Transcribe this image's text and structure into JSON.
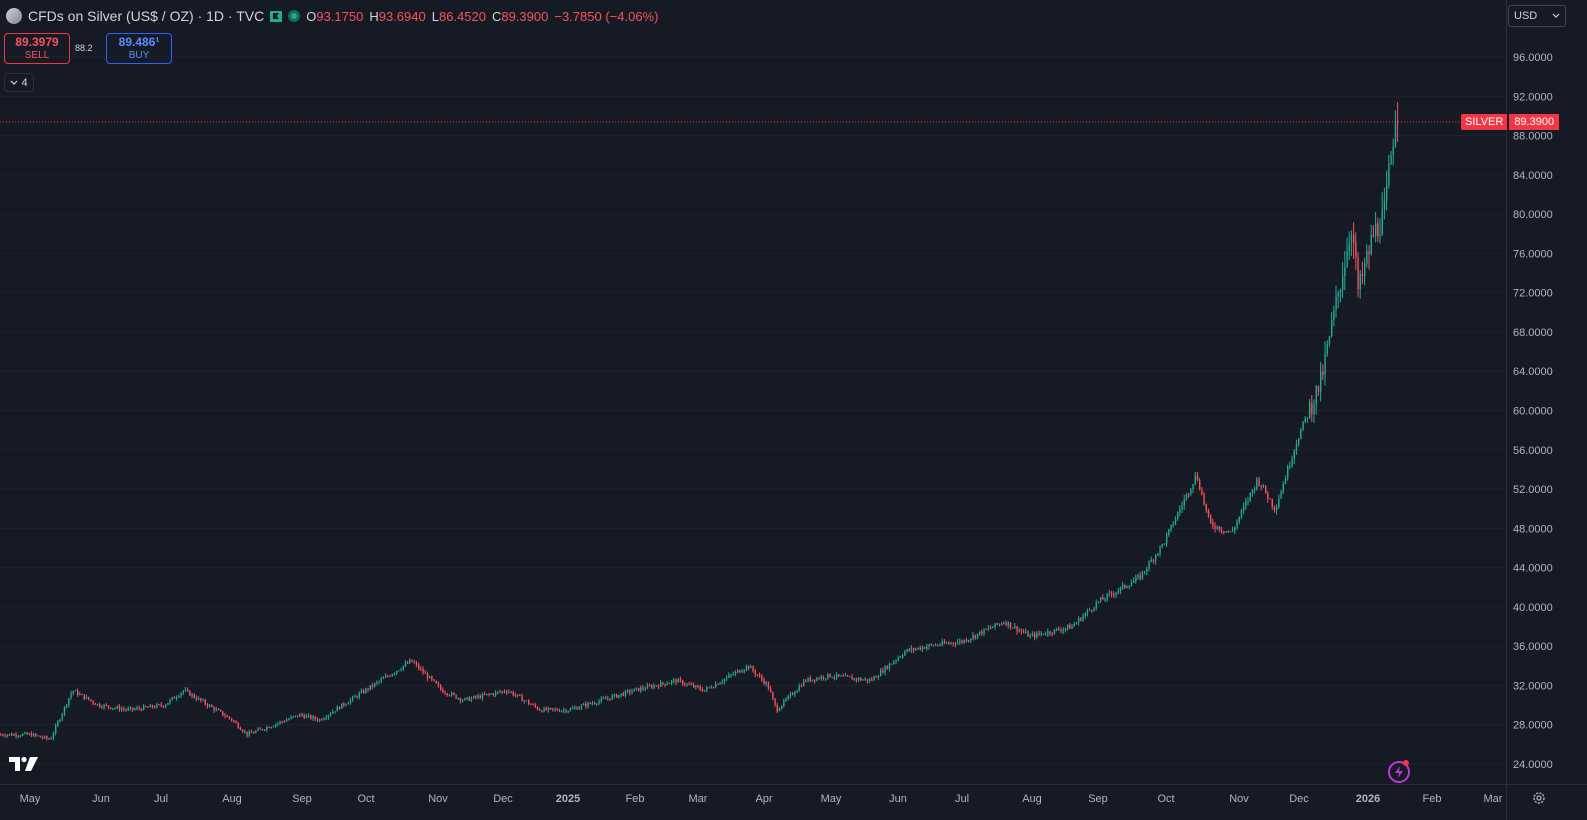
{
  "header": {
    "title": "CFDs on Silver (US$ / OZ) · 1D · TVC",
    "ohlc": {
      "o_label": "O",
      "o": "93.1750",
      "h_label": "H",
      "h": "93.6940",
      "l_label": "L",
      "l": "86.4520",
      "c_label": "C",
      "c": "89.3900",
      "change": "−3.7850 (−4.06%)"
    },
    "icons": [
      "symbol-icon",
      "flag-icon",
      "market-status-icon"
    ]
  },
  "trade": {
    "sell_price": "89.3979",
    "sell_label": "SELL",
    "spread": "88.2",
    "buy_price": "89.486¹",
    "buy_label": "BUY"
  },
  "indicators_toggle": {
    "count": "4"
  },
  "currency": {
    "selected": "USD"
  },
  "last_price_tag": {
    "symbol": "SILVER",
    "price": "89.3900"
  },
  "colors": {
    "up": "#22ab94",
    "down": "#f7525f",
    "background": "#161a25",
    "grid": "#1e222d",
    "axis_text": "#b2b5be"
  },
  "chart_data": {
    "type": "candlestick",
    "ylim": [
      22,
      98
    ],
    "y_ticks": [
      "24.0000",
      "28.0000",
      "32.0000",
      "36.0000",
      "40.0000",
      "44.0000",
      "48.0000",
      "52.0000",
      "56.0000",
      "60.0000",
      "64.0000",
      "68.0000",
      "72.0000",
      "76.0000",
      "80.0000",
      "84.0000",
      "88.0000",
      "92.0000",
      "96.0000"
    ],
    "x_ticks": [
      "May",
      "Jun",
      "Jul",
      "Aug",
      "Sep",
      "Oct",
      "Nov",
      "Dec",
      "2025",
      "Feb",
      "Mar",
      "Apr",
      "May",
      "Jun",
      "Jul",
      "Aug",
      "Sep",
      "Oct",
      "Nov",
      "Dec",
      "2026",
      "Feb",
      "Mar"
    ],
    "bold_x_ticks": [
      "2025",
      "2026"
    ],
    "last_price": 89.39,
    "series_anchors": [
      {
        "date": "2024-05-01",
        "close": 27.0
      },
      {
        "date": "2024-05-10",
        "close": 26.5
      },
      {
        "date": "2024-05-20",
        "close": 31.5
      },
      {
        "date": "2024-06-01",
        "close": 30.0
      },
      {
        "date": "2024-06-15",
        "close": 29.5
      },
      {
        "date": "2024-07-01",
        "close": 30.0
      },
      {
        "date": "2024-07-10",
        "close": 31.5
      },
      {
        "date": "2024-08-01",
        "close": 28.5
      },
      {
        "date": "2024-08-08",
        "close": 27.0
      },
      {
        "date": "2024-09-01",
        "close": 29.0
      },
      {
        "date": "2024-09-10",
        "close": 28.5
      },
      {
        "date": "2024-10-01",
        "close": 31.5
      },
      {
        "date": "2024-10-22",
        "close": 34.5
      },
      {
        "date": "2024-11-05",
        "close": 31.5
      },
      {
        "date": "2024-11-15",
        "close": 30.5
      },
      {
        "date": "2024-12-05",
        "close": 31.5
      },
      {
        "date": "2024-12-20",
        "close": 29.5
      },
      {
        "date": "2025-01-02",
        "close": 29.5
      },
      {
        "date": "2025-02-01",
        "close": 31.5
      },
      {
        "date": "2025-02-20",
        "close": 32.5
      },
      {
        "date": "2025-03-05",
        "close": 31.5
      },
      {
        "date": "2025-03-25",
        "close": 34.0
      },
      {
        "date": "2025-04-03",
        "close": 32.0
      },
      {
        "date": "2025-04-07",
        "close": 29.5
      },
      {
        "date": "2025-04-20",
        "close": 32.5
      },
      {
        "date": "2025-05-01",
        "close": 33.0
      },
      {
        "date": "2025-05-20",
        "close": 32.5
      },
      {
        "date": "2025-06-05",
        "close": 35.5
      },
      {
        "date": "2025-06-15",
        "close": 36.0
      },
      {
        "date": "2025-07-01",
        "close": 36.5
      },
      {
        "date": "2025-07-20",
        "close": 38.5
      },
      {
        "date": "2025-08-01",
        "close": 37.0
      },
      {
        "date": "2025-08-20",
        "close": 38.0
      },
      {
        "date": "2025-09-01",
        "close": 40.5
      },
      {
        "date": "2025-09-20",
        "close": 43.0
      },
      {
        "date": "2025-10-01",
        "close": 46.5
      },
      {
        "date": "2025-10-16",
        "close": 53.5
      },
      {
        "date": "2025-10-22",
        "close": 48.5
      },
      {
        "date": "2025-11-01",
        "close": 47.5
      },
      {
        "date": "2025-11-13",
        "close": 53.0
      },
      {
        "date": "2025-11-21",
        "close": 50.0
      },
      {
        "date": "2025-12-01",
        "close": 57.0
      },
      {
        "date": "2025-12-12",
        "close": 63.0
      },
      {
        "date": "2025-12-26",
        "close": 79.0
      },
      {
        "date": "2025-12-29",
        "close": 72.0
      },
      {
        "date": "2026-01-05",
        "close": 78.0
      },
      {
        "date": "2026-01-10",
        "close": 80.0
      },
      {
        "date": "2026-01-14",
        "close": 88.0
      },
      {
        "date": "2026-01-16",
        "close": 93.2
      },
      {
        "date": "2026-01-17",
        "close": 89.39
      }
    ]
  }
}
